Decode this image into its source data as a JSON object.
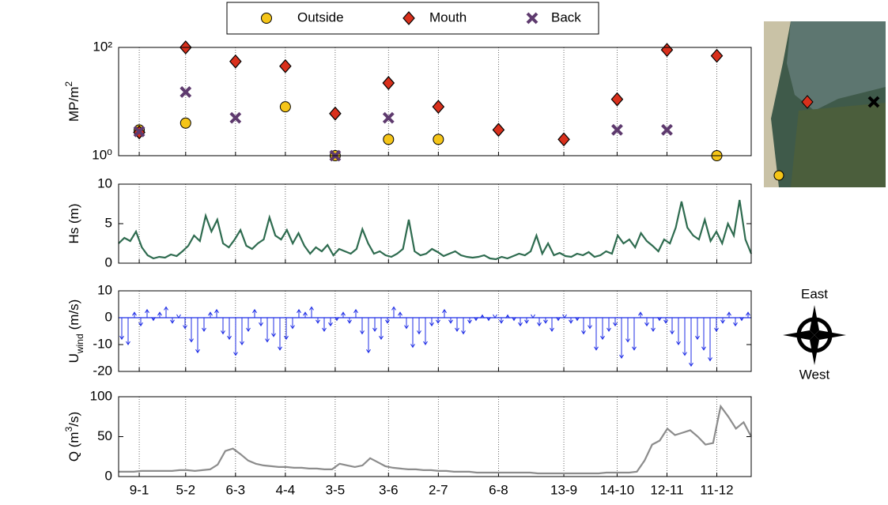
{
  "chart_data": [
    {
      "type": "scatter",
      "log": true,
      "ylabel": {
        "text": "MP/m",
        "sup": "2"
      },
      "xlim": [
        -3,
        365
      ],
      "xticks": [
        9,
        36,
        65,
        94,
        123,
        154,
        183,
        218,
        256,
        287,
        316,
        345
      ],
      "xgrid": true,
      "ylim": [
        1,
        100
      ],
      "yticks": [
        {
          "value": 1,
          "label": "10⁰"
        },
        {
          "value": 100,
          "label": "10²"
        }
      ],
      "legend": "top",
      "x": [
        9,
        36,
        65,
        94,
        123,
        154,
        183,
        218,
        256,
        287,
        316,
        345
      ],
      "series": [
        {
          "name": "Outside",
          "color": "#f5c518",
          "marker": "circle",
          "values": [
            3,
            4,
            null,
            8,
            1,
            2,
            2,
            null,
            null,
            null,
            null,
            1
          ]
        },
        {
          "name": "Mouth",
          "color": "#d9301c",
          "marker": "diamond",
          "values": [
            2.7,
            100,
            55,
            45,
            6,
            22,
            8,
            3,
            2,
            11,
            90,
            70
          ]
        },
        {
          "name": "Back",
          "color": "#5e3a6e",
          "marker": "cross",
          "values": [
            2.8,
            15,
            5,
            null,
            1,
            5,
            null,
            null,
            null,
            3,
            3,
            null
          ]
        }
      ]
    },
    {
      "type": "line",
      "ylabel": {
        "text": "Hs (m)"
      },
      "color": "#2e6b4f",
      "xlim": [
        -3,
        365
      ],
      "xticks": [
        9,
        36,
        65,
        94,
        123,
        154,
        183,
        218,
        256,
        287,
        316,
        345
      ],
      "xgrid": true,
      "ylim": [
        0,
        10
      ],
      "yticks": [
        0,
        5,
        10
      ],
      "values": [
        2.5,
        3.2,
        2.8,
        4.0,
        2.0,
        1.0,
        0.6,
        0.8,
        0.7,
        1.1,
        0.9,
        1.5,
        2.2,
        3.5,
        2.8,
        6.0,
        4.0,
        5.5,
        2.5,
        2.0,
        3.0,
        4.2,
        2.2,
        1.8,
        2.5,
        3.0,
        5.8,
        3.5,
        3.0,
        4.2,
        2.5,
        3.8,
        2.2,
        1.2,
        2.0,
        1.5,
        2.3,
        1.0,
        1.8,
        1.5,
        1.2,
        1.8,
        4.3,
        2.5,
        1.2,
        1.5,
        1.0,
        0.8,
        1.2,
        1.8,
        5.5,
        1.5,
        1.0,
        1.2,
        1.8,
        1.4,
        0.9,
        1.2,
        1.5,
        1.0,
        0.8,
        0.7,
        0.8,
        1.0,
        0.6,
        0.5,
        0.8,
        0.6,
        0.9,
        1.2,
        1.0,
        1.5,
        3.5,
        1.2,
        2.5,
        1.0,
        1.3,
        0.9,
        0.8,
        1.2,
        1.0,
        1.4,
        0.8,
        1.0,
        1.5,
        1.2,
        3.5,
        2.5,
        3.0,
        2.0,
        3.8,
        2.8,
        2.2,
        1.5,
        3.0,
        2.5,
        4.5,
        7.8,
        4.5,
        3.5,
        3.0,
        5.5,
        2.8,
        4.0,
        2.5,
        5.0,
        3.5,
        8.0,
        3.0,
        1.2
      ]
    },
    {
      "type": "quiver",
      "ylabel": {
        "text": "U",
        "sub": "wind",
        "unit": "(m/s)"
      },
      "color": "#1f2ee6",
      "xlim": [
        -3,
        365
      ],
      "xticks": [
        9,
        36,
        65,
        94,
        123,
        154,
        183,
        218,
        256,
        287,
        316,
        345
      ],
      "xgrid": true,
      "ylim": [
        -20,
        10
      ],
      "yticks": [
        -20,
        -10,
        0,
        10
      ],
      "values": [
        -8,
        -10,
        2,
        -3,
        3,
        -1,
        2,
        4,
        -2,
        0,
        -4,
        -9,
        -13,
        -5,
        2,
        3,
        -6,
        -8,
        -14,
        -10,
        -5,
        3,
        -3,
        -9,
        -7,
        -12,
        -8,
        -4,
        3,
        2,
        4,
        -2,
        -5,
        -3,
        -1,
        2,
        -2,
        3,
        -6,
        -13,
        -5,
        -8,
        -2,
        4,
        2,
        -4,
        -11,
        -6,
        -10,
        -3,
        -2,
        3,
        -2,
        -5,
        -6,
        -2,
        -1,
        1,
        -1,
        0,
        -2,
        1,
        -1,
        -3,
        -2,
        0,
        -3,
        -2,
        -5,
        -1,
        0,
        -2,
        -1,
        -6,
        -4,
        -12,
        -8,
        -5,
        -3,
        -15,
        -9,
        -12,
        2,
        -3,
        -5,
        -1,
        -2,
        -6,
        -10,
        -14,
        -18,
        -8,
        -12,
        -16,
        -5,
        -2,
        2,
        -3,
        -1,
        2
      ]
    },
    {
      "type": "line",
      "ylabel": {
        "text": "Q (m",
        "sup": "3",
        "unit": "/s)"
      },
      "color": "#8c8c8c",
      "xlim": [
        -3,
        365
      ],
      "xgrid": true,
      "xticks": [
        {
          "value": 9,
          "label": "9-1"
        },
        {
          "value": 36,
          "label": "5-2"
        },
        {
          "value": 65,
          "label": "6-3"
        },
        {
          "value": 94,
          "label": "4-4"
        },
        {
          "value": 123,
          "label": "3-5"
        },
        {
          "value": 154,
          "label": "3-6"
        },
        {
          "value": 183,
          "label": "2-7"
        },
        {
          "value": 218,
          "label": "6-8"
        },
        {
          "value": 256,
          "label": "13-9"
        },
        {
          "value": 287,
          "label": "14-10"
        },
        {
          "value": 316,
          "label": "12-11"
        },
        {
          "value": 345,
          "label": "11-12"
        }
      ],
      "ylim": [
        0,
        100
      ],
      "yticks": [
        0,
        50,
        100
      ],
      "values": [
        6,
        6,
        6,
        7,
        7,
        7,
        7,
        7,
        8,
        8,
        7,
        8,
        9,
        15,
        32,
        35,
        28,
        20,
        16,
        14,
        13,
        12,
        12,
        11,
        11,
        10,
        10,
        9,
        9,
        16,
        14,
        12,
        14,
        23,
        18,
        13,
        11,
        10,
        9,
        9,
        8,
        8,
        7,
        7,
        6,
        6,
        6,
        5,
        5,
        5,
        5,
        5,
        5,
        5,
        5,
        4,
        4,
        4,
        4,
        4,
        4,
        4,
        4,
        4,
        5,
        5,
        5,
        5,
        6,
        20,
        40,
        45,
        60,
        52,
        55,
        58,
        50,
        40,
        42,
        88,
        75,
        60,
        68,
        50
      ]
    }
  ],
  "compass": {
    "top": "East",
    "bottom": "West"
  }
}
